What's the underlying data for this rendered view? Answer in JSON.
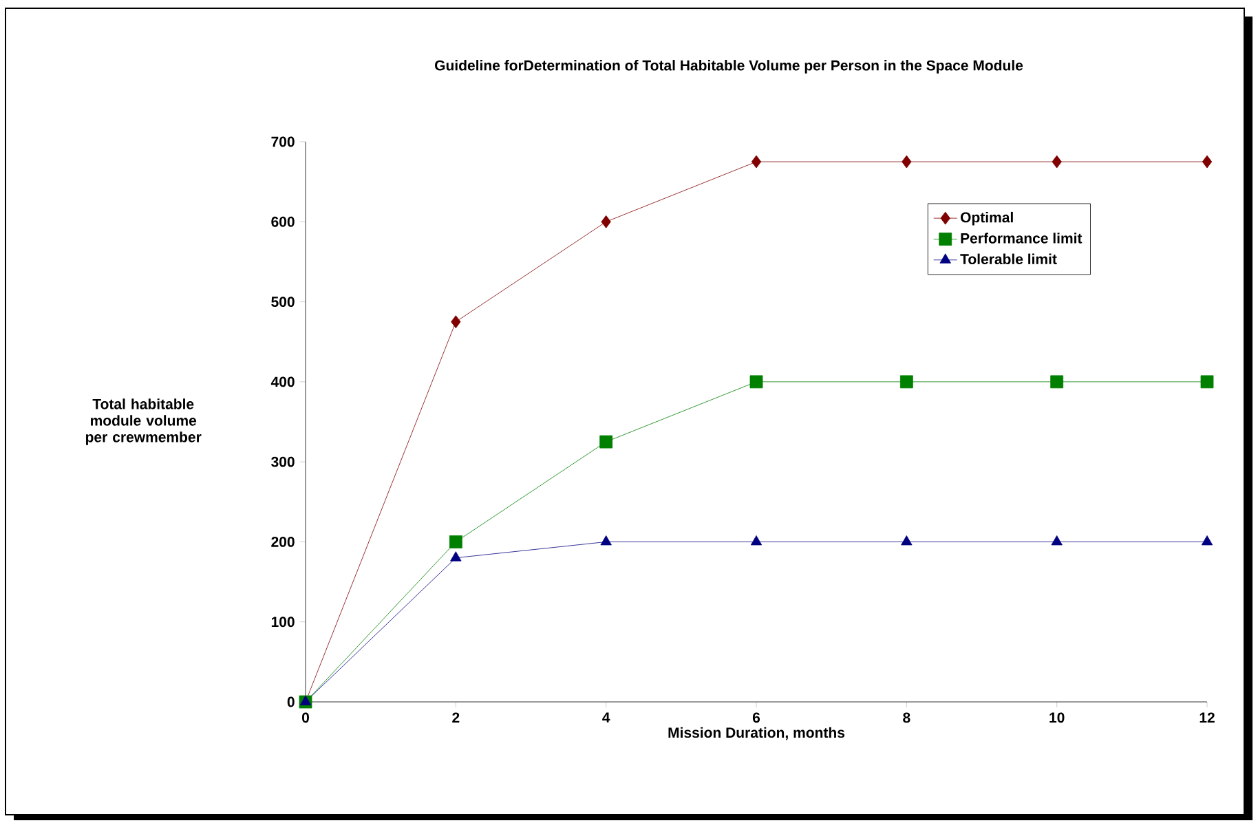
{
  "chart_data": {
    "type": "line",
    "title": "Guideline forDetermination of Total Habitable Volume per Person in the Space Module",
    "xlabel": "Mission Duration, months",
    "ylabel": "Total habitable module volume per crewmember",
    "x": [
      0,
      2,
      4,
      6,
      8,
      10,
      12
    ],
    "series": [
      {
        "name": "Optimal",
        "color": "#800000",
        "marker": "diamond",
        "values": [
          0,
          475,
          600,
          675,
          675,
          675,
          675
        ]
      },
      {
        "name": "Performance limit",
        "color": "#008000",
        "marker": "square",
        "values": [
          0,
          200,
          325,
          400,
          400,
          400,
          400
        ]
      },
      {
        "name": "Tolerable limit",
        "color": "#000080",
        "marker": "triangle",
        "values": [
          0,
          180,
          200,
          200,
          200,
          200,
          200
        ]
      }
    ],
    "xlim": [
      0,
      12
    ],
    "xticks": [
      0,
      2,
      4,
      6,
      8,
      10,
      12
    ],
    "ylim": [
      0,
      700
    ],
    "yticks": [
      0,
      100,
      200,
      300,
      400,
      500,
      600,
      700
    ],
    "legend": "top right",
    "line_style": "solid"
  }
}
